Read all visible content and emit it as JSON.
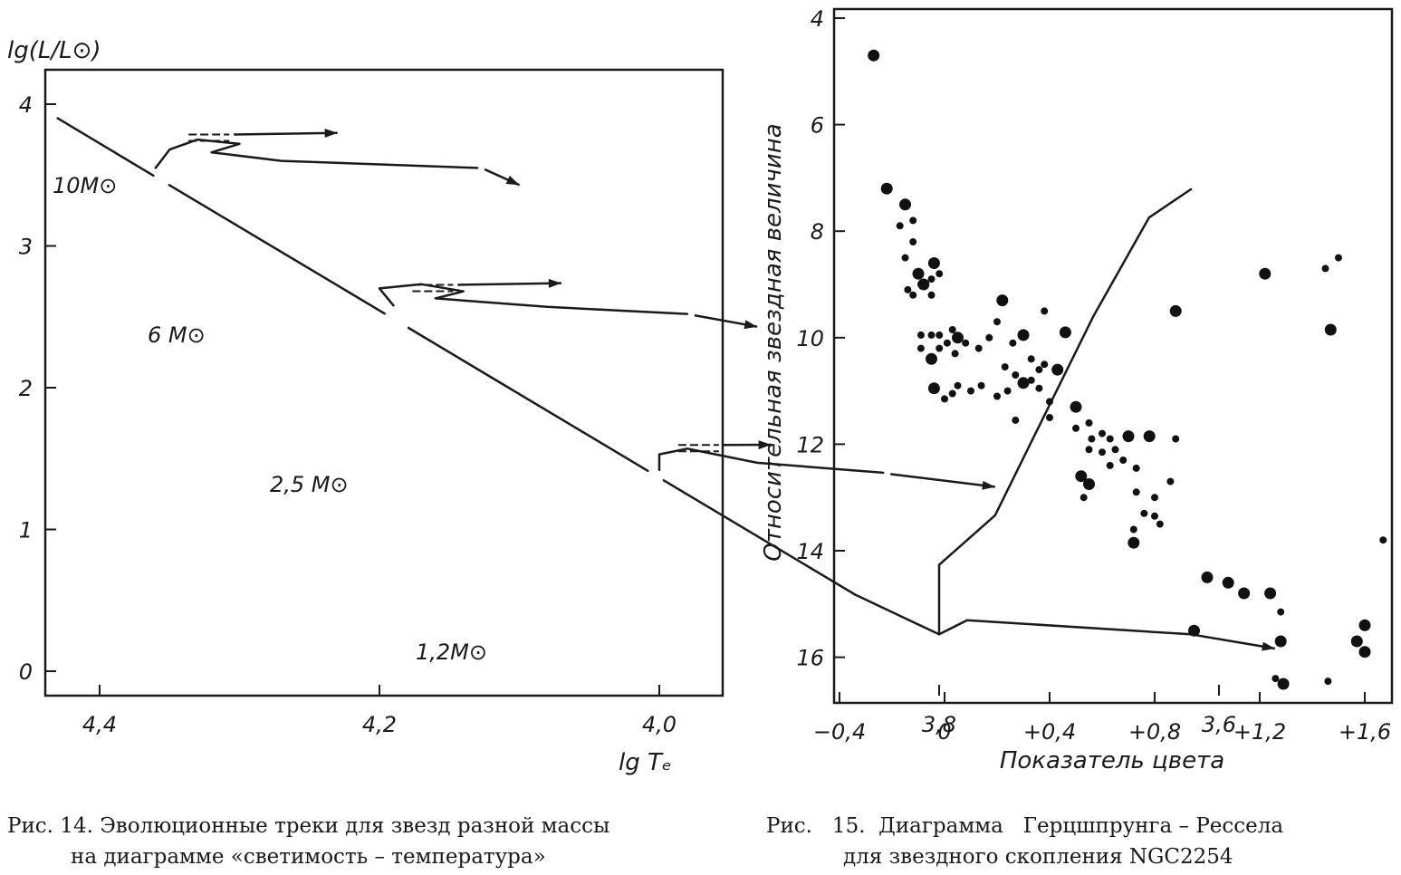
{
  "chart_data": [
    {
      "type": "line",
      "ylabel": "lg(L/L⊙)",
      "xlabel": "lg Tₑ",
      "xlim": [
        4.48,
        3.53
      ],
      "ylim": [
        -0.15,
        4.15
      ],
      "x_ticks": [
        "4,4",
        "4,2",
        "4,0",
        "3,8",
        "3,6"
      ],
      "y_ticks": [
        "0",
        "1",
        "2",
        "3",
        "4"
      ],
      "main_sequence": [
        [
          4.43,
          3.9
        ],
        [
          3.86,
          0.54
        ]
      ],
      "tracks": [
        {
          "label": "10M⊙",
          "path": [
            [
              4.36,
              3.55
            ],
            [
              4.35,
              3.68
            ],
            [
              4.33,
              3.75
            ],
            [
              4.3,
              3.72
            ],
            [
              4.32,
              3.66
            ],
            [
              4.27,
              3.6
            ],
            [
              4.13,
              3.55
            ]
          ],
          "arrow_to": [
            4.1,
            3.43
          ],
          "dash_level": 3.76,
          "dash_arrow_to": [
            4.23,
            3.81
          ]
        },
        {
          "label": "6 M⊙",
          "path": [
            [
              4.19,
              2.58
            ],
            [
              4.2,
              2.7
            ],
            [
              4.17,
              2.73
            ],
            [
              4.14,
              2.68
            ],
            [
              4.16,
              2.63
            ],
            [
              4.08,
              2.57
            ],
            [
              3.98,
              2.52
            ]
          ],
          "arrow_to": [
            3.93,
            2.43
          ],
          "dash_level": 2.7,
          "dash_arrow_to": [
            4.07,
            2.75
          ]
        },
        {
          "label": "2,5 M⊙",
          "path": [
            [
              4.0,
              1.42
            ],
            [
              4.0,
              1.53
            ],
            [
              3.98,
              1.57
            ],
            [
              3.93,
              1.47
            ],
            [
              3.84,
              1.4
            ]
          ],
          "arrow_to": [
            3.76,
            1.3
          ],
          "dash_level": 1.57,
          "dash_arrow_to": [
            3.92,
            1.61
          ]
        },
        {
          "label": "1,2M⊙",
          "path": [
            [
              3.86,
              0.54
            ],
            [
              3.8,
              0.26
            ],
            [
              3.8,
              0.4
            ],
            [
              3.8,
              0.75
            ],
            [
              3.76,
              1.1
            ],
            [
              3.73,
              1.7
            ],
            [
              3.69,
              2.5
            ],
            [
              3.65,
              3.2
            ],
            [
              3.62,
              3.4
            ]
          ],
          "branch": [
            [
              3.78,
              0.36
            ],
            [
              3.62,
              0.26
            ],
            [
              3.56,
              0.16
            ]
          ]
        }
      ]
    },
    {
      "type": "scatter",
      "xlabel": "Показатель цвета",
      "ylabel": "Относительная звездная величина",
      "xlim": [
        -0.5,
        1.7
      ],
      "ylim": [
        17,
        4
      ],
      "x_ticks": [
        "−0,4",
        "0",
        "+0,4",
        "+0,8",
        "+1,2",
        "+1,6"
      ],
      "y_ticks": [
        "4",
        "6",
        "8",
        "10",
        "12",
        "14",
        "16"
      ],
      "points": [
        [
          -0.27,
          4.7,
          2
        ],
        [
          -0.22,
          7.2,
          2
        ],
        [
          -0.17,
          7.9,
          1
        ],
        [
          -0.15,
          7.5,
          2
        ],
        [
          -0.12,
          7.8,
          1
        ],
        [
          -0.15,
          8.5,
          1
        ],
        [
          -0.12,
          8.2,
          1
        ],
        [
          -0.1,
          8.8,
          2
        ],
        [
          -0.08,
          9.0,
          2
        ],
        [
          -0.05,
          8.9,
          1
        ],
        [
          -0.14,
          9.1,
          1
        ],
        [
          -0.12,
          9.2,
          1
        ],
        [
          -0.05,
          9.2,
          1
        ],
        [
          -0.04,
          8.6,
          2
        ],
        [
          -0.02,
          8.8,
          1
        ],
        [
          -0.09,
          9.0,
          1
        ],
        [
          -0.09,
          9.95,
          1
        ],
        [
          -0.05,
          9.95,
          1
        ],
        [
          -0.02,
          9.95,
          1
        ],
        [
          0.03,
          9.85,
          1
        ],
        [
          -0.09,
          10.2,
          1
        ],
        [
          -0.05,
          10.4,
          2
        ],
        [
          -0.02,
          10.2,
          1
        ],
        [
          0.01,
          10.1,
          1
        ],
        [
          0.04,
          10.3,
          1
        ],
        [
          0.05,
          10.0,
          2
        ],
        [
          0.08,
          10.1,
          1
        ],
        [
          0.13,
          10.2,
          1
        ],
        [
          0.17,
          10.0,
          1
        ],
        [
          0.2,
          9.7,
          1
        ],
        [
          0.22,
          9.3,
          2
        ],
        [
          0.26,
          10.1,
          1
        ],
        [
          0.3,
          9.95,
          2
        ],
        [
          0.38,
          9.5,
          1
        ],
        [
          0.46,
          9.9,
          2
        ],
        [
          0.43,
          10.6,
          2
        ],
        [
          0.38,
          10.5,
          1
        ],
        [
          0.33,
          10.4,
          1
        ],
        [
          0.36,
          10.6,
          1
        ],
        [
          0.23,
          10.55,
          1
        ],
        [
          0.27,
          10.7,
          1
        ],
        [
          0.3,
          10.85,
          2
        ],
        [
          0.33,
          10.8,
          1
        ],
        [
          0.36,
          10.95,
          1
        ],
        [
          0.4,
          11.2,
          1
        ],
        [
          -0.04,
          10.95,
          2
        ],
        [
          0.0,
          11.15,
          1
        ],
        [
          0.03,
          11.05,
          1
        ],
        [
          0.05,
          10.9,
          1
        ],
        [
          0.1,
          11.0,
          1
        ],
        [
          0.14,
          10.9,
          1
        ],
        [
          0.2,
          11.1,
          1
        ],
        [
          0.24,
          11.0,
          1
        ],
        [
          0.4,
          11.5,
          1
        ],
        [
          0.5,
          11.3,
          2
        ],
        [
          0.27,
          11.55,
          1
        ],
        [
          0.5,
          11.7,
          1
        ],
        [
          0.55,
          11.6,
          1
        ],
        [
          0.56,
          11.9,
          1
        ],
        [
          0.6,
          11.8,
          1
        ],
        [
          0.63,
          11.9,
          1
        ],
        [
          0.55,
          12.1,
          1
        ],
        [
          0.6,
          12.15,
          1
        ],
        [
          0.65,
          12.1,
          1
        ],
        [
          0.7,
          11.85,
          2
        ],
        [
          0.78,
          11.85,
          2
        ],
        [
          0.88,
          11.9,
          1
        ],
        [
          0.63,
          12.4,
          1
        ],
        [
          0.68,
          12.3,
          1
        ],
        [
          0.73,
          12.45,
          1
        ],
        [
          0.52,
          12.6,
          2
        ],
        [
          0.55,
          12.75,
          2
        ],
        [
          0.53,
          13.0,
          1
        ],
        [
          0.73,
          12.9,
          1
        ],
        [
          0.76,
          13.3,
          1
        ],
        [
          0.8,
          13.0,
          1
        ],
        [
          0.8,
          13.35,
          1
        ],
        [
          0.82,
          13.5,
          1
        ],
        [
          0.86,
          12.7,
          1
        ],
        [
          0.72,
          13.6,
          1
        ],
        [
          0.72,
          13.85,
          2
        ],
        [
          0.88,
          9.5,
          2
        ],
        [
          1.22,
          8.8,
          2
        ],
        [
          1.45,
          8.7,
          1
        ],
        [
          1.5,
          8.5,
          1
        ],
        [
          1.47,
          9.85,
          2
        ],
        [
          1.0,
          14.5,
          2
        ],
        [
          1.08,
          14.6,
          2
        ],
        [
          1.14,
          14.8,
          2
        ],
        [
          1.24,
          14.8,
          2
        ],
        [
          1.28,
          15.15,
          1
        ],
        [
          0.95,
          15.5,
          2
        ],
        [
          1.28,
          15.7,
          2
        ],
        [
          1.26,
          16.4,
          1
        ],
        [
          1.29,
          16.5,
          2
        ],
        [
          1.46,
          16.45,
          1
        ],
        [
          1.6,
          15.4,
          2
        ],
        [
          1.57,
          15.7,
          2
        ],
        [
          1.6,
          15.9,
          2
        ],
        [
          1.67,
          13.8,
          1
        ]
      ]
    }
  ],
  "captions": {
    "fig14_line1": "Рис. 14. Эволюционные треки для звезд разной массы",
    "fig14_line2": "на диаграмме «светимость – температура»",
    "fig15_line1": "Рис.   15.  Диаграмма   Герцшпрунга – Рессела",
    "fig15_line2": "для звездного скопления NGC2254"
  }
}
